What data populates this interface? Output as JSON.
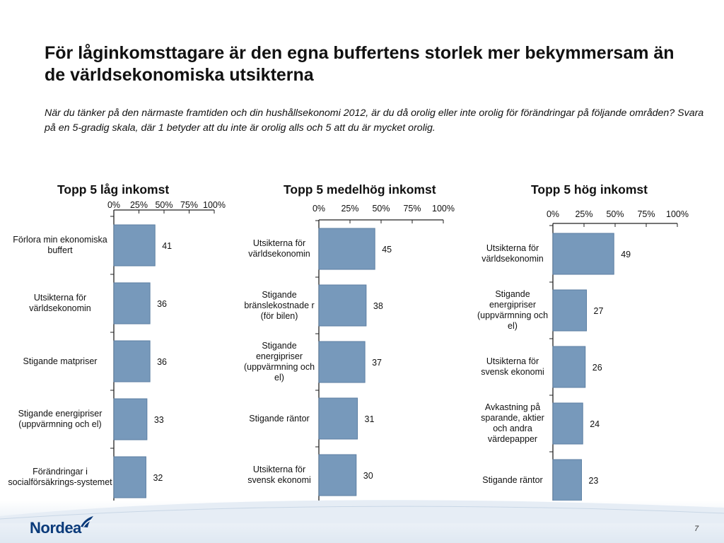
{
  "slide": {
    "title": "För låginkomsttagare är den egna buffertens storlek mer bekymmersam än de världsekonomiska utsikterna",
    "question": "När du tänker på den närmaste framtiden och din hushållsekonomi 2012, är du då orolig eller inte orolig för förändringar på följande områden? Svara på en 5-gradig skala, där 1 betyder att du inte är orolig alls och 5 att du är mycket orolig.",
    "page_number": "7",
    "logo_text": "Nordea"
  },
  "colors": {
    "bar": "#7799bb",
    "logo": "#0a3a7a"
  },
  "chart_data": [
    {
      "type": "bar",
      "orientation": "horizontal",
      "title": "Topp 5 låg inkomst",
      "xlim": [
        0,
        100
      ],
      "ticks": [
        "0%",
        "25%",
        "50%",
        "75%",
        "100%"
      ],
      "categories": [
        "Förlora min ekonomiska buffert",
        "Utsikterna för världsekonomin",
        "Stigande matpriser",
        "Stigande energipriser (uppvärmning och el)",
        "Förändringar i socialförsäkrings-systemet"
      ],
      "values": [
        41,
        36,
        36,
        33,
        32
      ],
      "value_labels": [
        "41",
        "36",
        "36",
        "33",
        "32"
      ]
    },
    {
      "type": "bar",
      "orientation": "horizontal",
      "title": "Topp 5 medelhög inkomst",
      "xlim": [
        0,
        100
      ],
      "ticks": [
        "0%",
        "25%",
        "50%",
        "75%",
        "100%"
      ],
      "categories": [
        "Utsikterna för världsekonomin",
        "Stigande bränslekostnade r (för bilen)",
        "Stigande energipriser (uppvärmning och el)",
        "Stigande räntor",
        "Utsikterna för svensk ekonomi"
      ],
      "values": [
        45,
        38,
        37,
        31,
        30
      ],
      "value_labels": [
        "45",
        "38",
        "37",
        "31",
        "30"
      ]
    },
    {
      "type": "bar",
      "orientation": "horizontal",
      "title": "Topp 5 hög inkomst",
      "xlim": [
        0,
        100
      ],
      "ticks": [
        "0%",
        "25%",
        "50%",
        "75%",
        "100%"
      ],
      "categories": [
        "Utsikterna för världsekonomin",
        "Stigande energipriser (uppvärmning och el)",
        "Utsikterna för svensk ekonomi",
        "Avkastning på sparande, aktier och andra värdepapper",
        "Stigande räntor"
      ],
      "values": [
        49,
        27,
        26,
        24,
        23
      ],
      "value_labels": [
        "49",
        "27",
        "26",
        "24",
        "23"
      ]
    }
  ]
}
